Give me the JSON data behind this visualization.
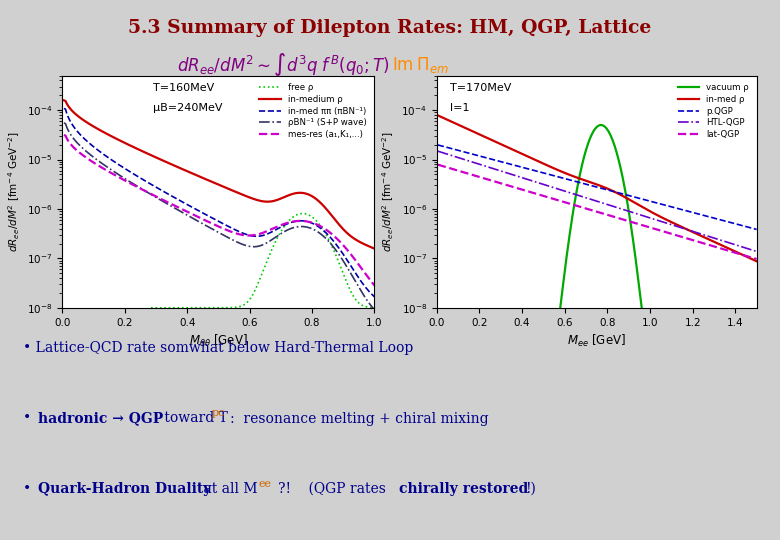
{
  "title": "5.3 Summary of Dilepton Rates: HM, QGP, Lattice",
  "title_color": "#8B0000",
  "bg_color": "#d0d0d0",
  "plot1_title1": "T=160MeV",
  "plot1_title2": "μB=240MeV",
  "plot2_title1": "T=170MeV",
  "plot2_title2": "l=1",
  "bullet1": "Lattice-QCD rate somwhat below Hard-Thermal Loop",
  "bullet_color": "#00008B",
  "subscript_color": "#CC6600"
}
